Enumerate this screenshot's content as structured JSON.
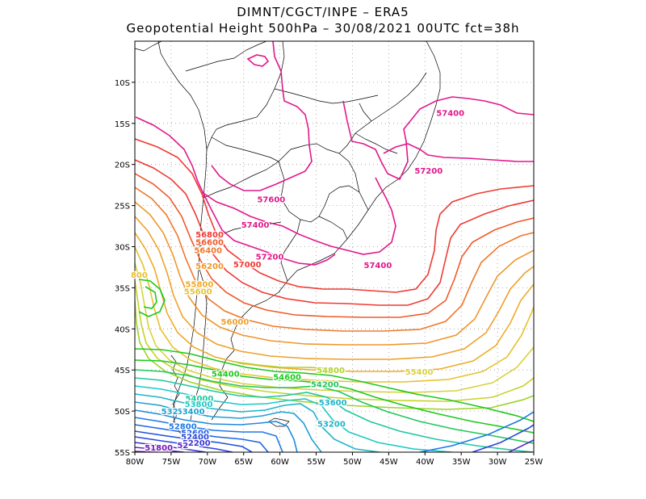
{
  "title_line1": "DIMNT/CGCT/INPE  –   ERA5",
  "title_line2": "Geopotential Height 500hPa  –   30/08/2021 00UTC fct=38h",
  "chart_data": {
    "type": "contour-map",
    "variable": "Geopotential Height 500hPa",
    "lon_range": [
      -80,
      -25
    ],
    "lat_range": [
      -55,
      -5
    ],
    "grid": true,
    "lat_ticks": [
      "10S",
      "15S",
      "20S",
      "25S",
      "30S",
      "35S",
      "40S",
      "45S",
      "50S",
      "55S"
    ],
    "lon_ticks": [
      "80W",
      "75W",
      "70W",
      "65W",
      "60W",
      "55W",
      "50W",
      "45W",
      "40W",
      "35W",
      "30W",
      "25W"
    ],
    "contour_labels": [
      {
        "text": "57400",
        "lon": -36.5,
        "lat": -13.7,
        "color": "#e0198c"
      },
      {
        "text": "57200",
        "lon": -39.5,
        "lat": -20.7,
        "color": "#e0198c"
      },
      {
        "text": "57600",
        "lon": -61.2,
        "lat": -24.2,
        "color": "#e0198c"
      },
      {
        "text": "57400",
        "lon": -63.4,
        "lat": -27.3,
        "color": "#e0198c"
      },
      {
        "text": "57200",
        "lon": -61.4,
        "lat": -31.2,
        "color": "#e0198c"
      },
      {
        "text": "57400",
        "lon": -46.5,
        "lat": -32.2,
        "color": "#e0198c"
      },
      {
        "text": "57000",
        "lon": -64.5,
        "lat": -32.1,
        "color": "#ef3a34"
      },
      {
        "text": "56800",
        "lon": -69.7,
        "lat": -28.5,
        "color": "#ef3a34"
      },
      {
        "text": "56600",
        "lon": -69.7,
        "lat": -29.4,
        "color": "#f05a2a"
      },
      {
        "text": "56400",
        "lon": -69.9,
        "lat": -30.4,
        "color": "#f0782a"
      },
      {
        "text": "56200",
        "lon": -69.7,
        "lat": -32.3,
        "color": "#f0962a"
      },
      {
        "text": "55800",
        "lon": -71.1,
        "lat": -34.5,
        "color": "#f0aa28"
      },
      {
        "text": "55600",
        "lon": -71.3,
        "lat": -35.4,
        "color": "#e6c22c"
      },
      {
        "text": "56000",
        "lon": -66.2,
        "lat": -39.1,
        "color": "#f0a02a"
      },
      {
        "text": "55400",
        "lon": -40.8,
        "lat": -45.2,
        "color": "#d8d23a"
      },
      {
        "text": "54800",
        "lon": -53.0,
        "lat": -45.0,
        "color": "#b4d22a"
      },
      {
        "text": "54600",
        "lon": -59.0,
        "lat": -45.8,
        "color": "#1ec81e"
      },
      {
        "text": "54400",
        "lon": -67.5,
        "lat": -45.4,
        "color": "#1ec81e"
      },
      {
        "text": "54200",
        "lon": -53.8,
        "lat": -46.7,
        "color": "#1ec85a"
      },
      {
        "text": "54000",
        "lon": -71.1,
        "lat": -48.4,
        "color": "#1ec8a0"
      },
      {
        "text": "53800",
        "lon": -71.2,
        "lat": -49.1,
        "color": "#1ec8c8"
      },
      {
        "text": "53600",
        "lon": -52.7,
        "lat": -48.9,
        "color": "#1eb4c8"
      },
      {
        "text": "53400",
        "lon": -72.3,
        "lat": -50.0,
        "color": "#1ea0d2"
      },
      {
        "text": "532",
        "lon": -75.2,
        "lat": -50.0,
        "color": "#1ea0d2"
      },
      {
        "text": "52800",
        "lon": -73.4,
        "lat": -51.8,
        "color": "#1e78e6"
      },
      {
        "text": "52600",
        "lon": -71.7,
        "lat": -52.6,
        "color": "#1e5ae6"
      },
      {
        "text": "52400",
        "lon": -71.7,
        "lat": -53.1,
        "color": "#2846dc"
      },
      {
        "text": "52200",
        "lon": -71.5,
        "lat": -53.8,
        "color": "#3c32d2"
      },
      {
        "text": "52",
        "lon": -73.4,
        "lat": -54.1,
        "color": "#5a28c8"
      },
      {
        "text": "51800",
        "lon": -76.7,
        "lat": -54.4,
        "color": "#7814be"
      },
      {
        "text": "53200",
        "lon": -52.9,
        "lat": -51.5,
        "color": "#1eb4c8"
      },
      {
        "text": "800",
        "lon": -79.4,
        "lat": -33.4,
        "color": "#e6c22c"
      }
    ]
  }
}
